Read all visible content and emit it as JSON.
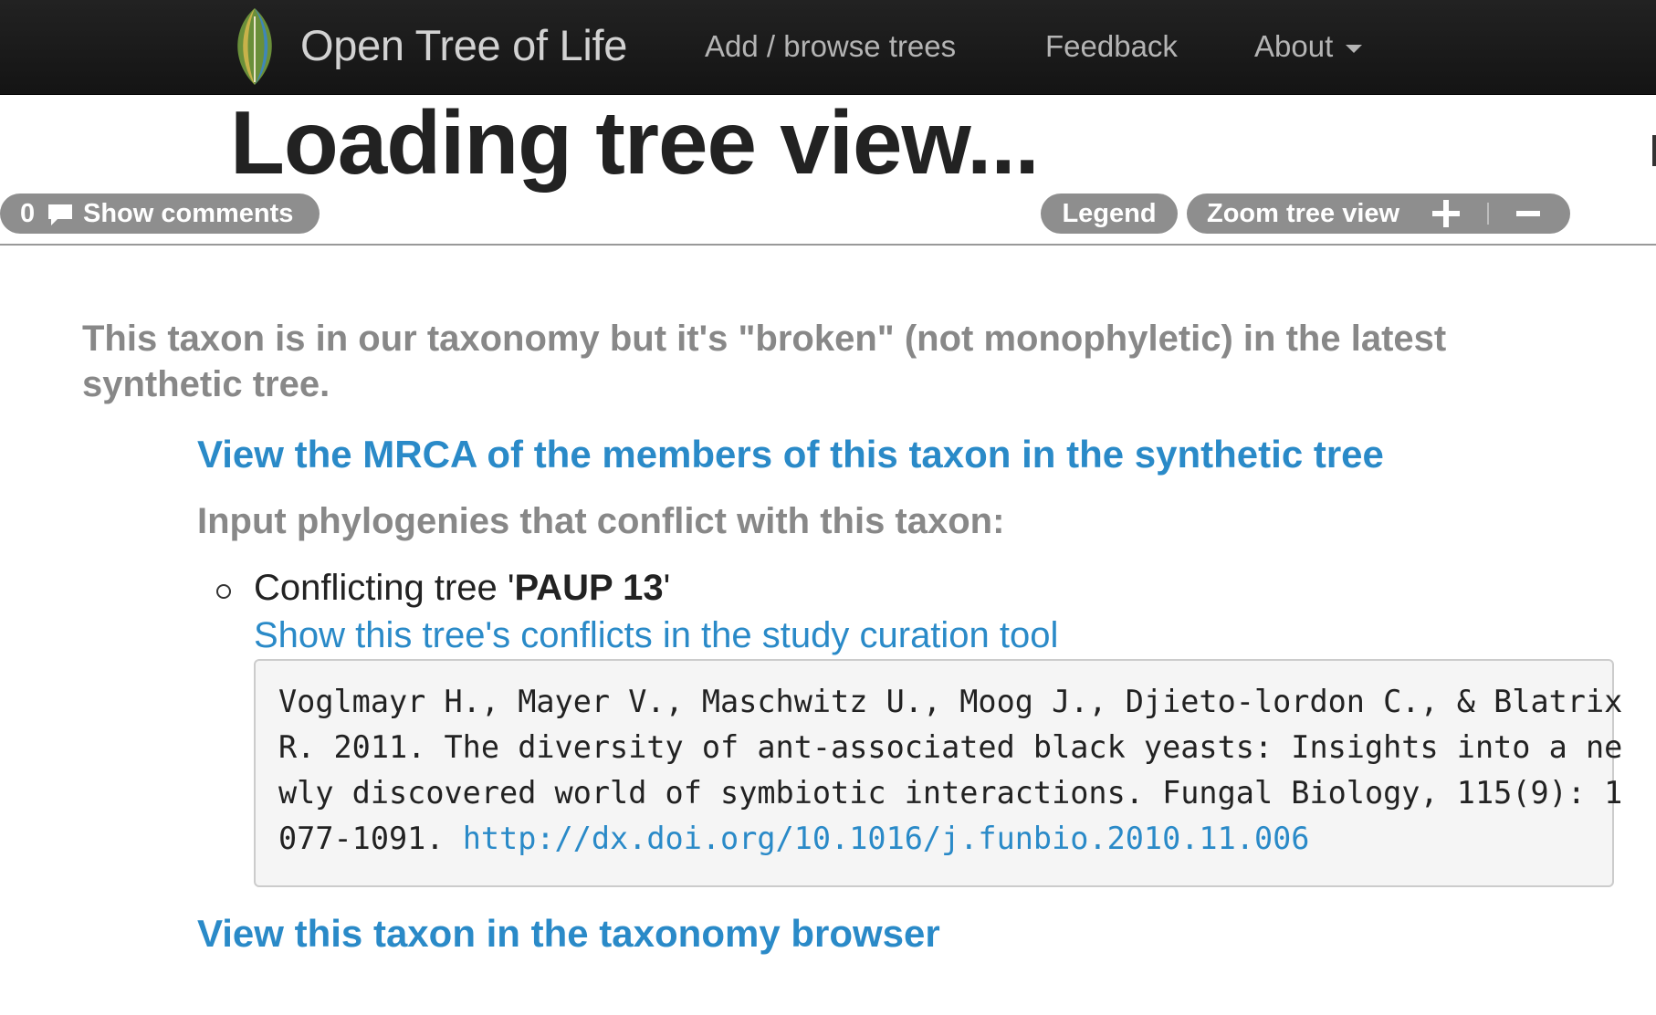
{
  "navbar": {
    "brand": "Open Tree of Life",
    "items": [
      {
        "label": "Add / browse trees"
      },
      {
        "label": "Feedback"
      },
      {
        "label": "About"
      }
    ]
  },
  "page": {
    "title": "Loading tree view..."
  },
  "toolbar": {
    "comment_count": "0",
    "show_comments": "Show comments",
    "legend": "Legend",
    "zoom_label": "Zoom tree view"
  },
  "content": {
    "broken_message": "This taxon is in our taxonomy but it's \"broken\" (not monophyletic) in the latest synthetic tree.",
    "mrca_link": "View the MRCA of the members of this taxon in the synthetic tree",
    "conflict_heading": "Input phylogenies that conflict with this taxon:",
    "conflicting_trees": [
      {
        "prefix": "Conflicting tree '",
        "name": "PAUP 13",
        "suffix": "'",
        "curation_link": "Show this tree's conflicts in the study curation tool",
        "citation": "Voglmayr H., Mayer V., Maschwitz U., Moog J., Djieto-lordon C., & Blatrix\nR. 2011. The diversity of ant-associated black yeasts: Insights into a ne\nwly discovered world of symbiotic interactions. Fungal Biology, 115(9): 1\n077-1091. ",
        "doi": "http://dx.doi.org/10.1016/j.funbio.2010.11.006"
      }
    ],
    "taxonomy_link": "View this taxon in the taxonomy browser"
  },
  "icons": {
    "logo": "leaf-logo-icon",
    "comment": "speech-bubble-icon",
    "zoom_in": "plus-icon",
    "zoom_out": "minus-icon",
    "about_menu": "caret-down-icon"
  },
  "colors": {
    "navbar_bg": "#1b1b1b",
    "link": "#2a8ac8",
    "pill": "#8e8e8e",
    "muted_heading": "#888888",
    "citation_bg": "#f5f5f5"
  }
}
